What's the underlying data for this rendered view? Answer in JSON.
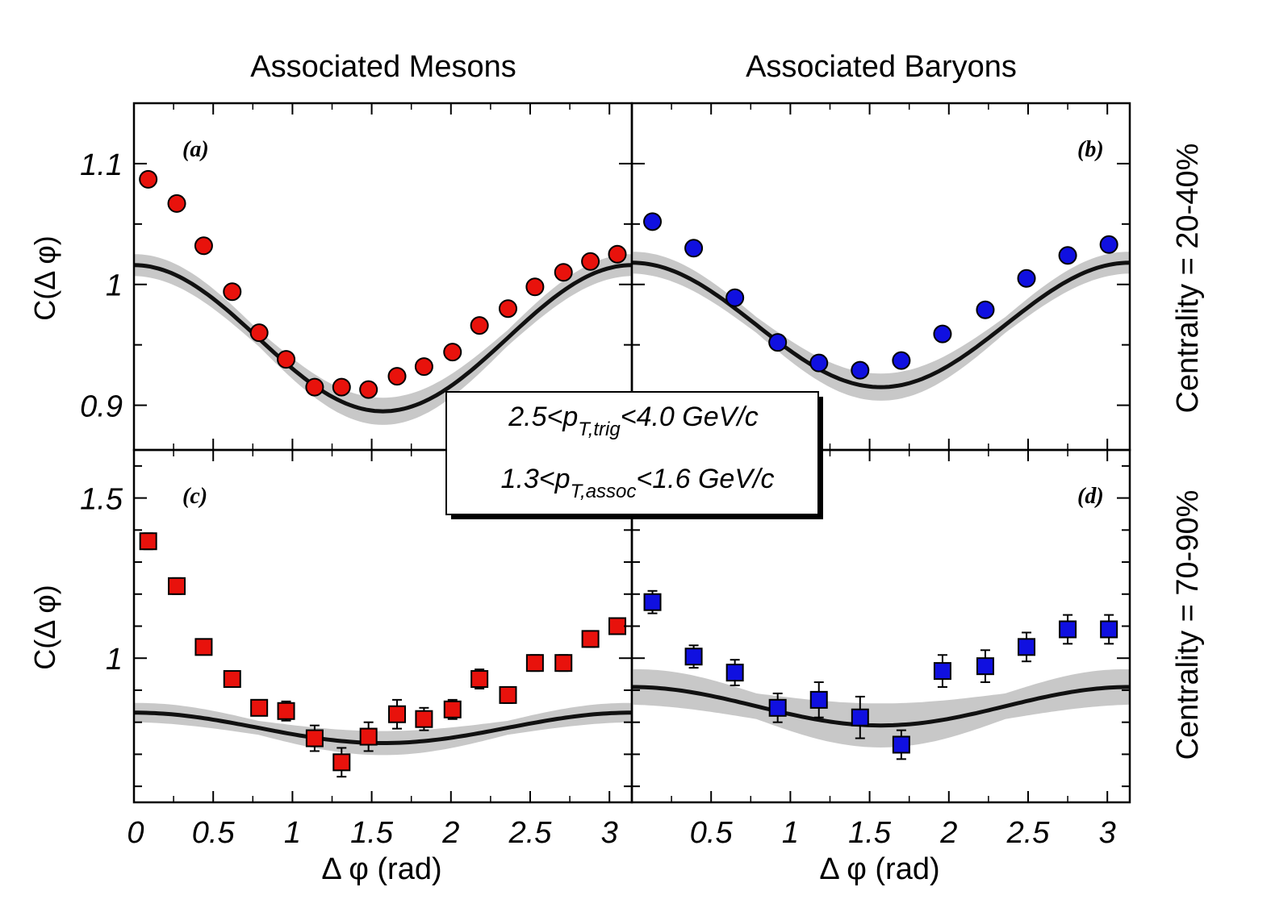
{
  "figure": {
    "col_titles": [
      "Associated Mesons",
      "Associated Baryons"
    ],
    "row_labels": [
      "Centrality = 20-40%",
      "Centrality = 70-90%"
    ],
    "ylabel": "C(Δ φ)",
    "xlabel": "Δ φ (rad)",
    "legend": {
      "line1": {
        "pre": "2.5<p",
        "sub": "T,trig",
        "post": "<4.0 GeV/c"
      },
      "line2": {
        "pre": "1.3<p",
        "sub": "T,assoc",
        "post": "<1.6 GeV/c"
      }
    },
    "colors": {
      "meson": "#e8120c",
      "baryon": "#1010e0",
      "curve": "#111111",
      "band": "#c8c8c8"
    }
  },
  "chart_data": [
    {
      "panel": "(a)",
      "type": "scatter",
      "marker": "circle",
      "x": [
        0.09,
        0.27,
        0.44,
        0.62,
        0.79,
        0.96,
        1.14,
        1.31,
        1.48,
        1.66,
        1.83,
        2.01,
        2.18,
        2.36,
        2.53,
        2.71,
        2.88,
        3.05
      ],
      "y": [
        1.087,
        1.067,
        1.032,
        0.994,
        0.96,
        0.938,
        0.915,
        0.915,
        0.913,
        0.924,
        0.932,
        0.944,
        0.966,
        0.98,
        0.998,
        1.01,
        1.019,
        1.025
      ],
      "fit_y_at_0": 1.016,
      "fit_y_at_pi_over_2": 0.895,
      "band_halfwidth": 0.009,
      "xlim": [
        0,
        3.1416
      ],
      "ylim": [
        0.863,
        1.15
      ],
      "yticks": [
        0.9,
        1,
        1.1
      ],
      "ytick_labels": [
        "0.9",
        "1",
        "1.1"
      ]
    },
    {
      "panel": "(b)",
      "type": "scatter",
      "marker": "circle",
      "x": [
        0.13,
        0.39,
        0.65,
        0.92,
        1.18,
        1.44,
        1.7,
        1.96,
        2.23,
        2.49,
        2.75,
        3.01
      ],
      "y": [
        1.052,
        1.03,
        0.989,
        0.952,
        0.935,
        0.929,
        0.937,
        0.959,
        0.979,
        1.005,
        1.024,
        1.033
      ],
      "fit_y_at_0": 1.018,
      "fit_y_at_pi_over_2": 0.915,
      "band_halfwidth": 0.009,
      "xlim": [
        0,
        3.1416
      ],
      "ylim": [
        0.863,
        1.15
      ]
    },
    {
      "panel": "(c)",
      "type": "scatter",
      "marker": "square",
      "x": [
        0.09,
        0.27,
        0.44,
        0.62,
        0.79,
        0.96,
        1.14,
        1.31,
        1.48,
        1.66,
        1.83,
        2.01,
        2.18,
        2.36,
        2.53,
        2.71,
        2.88,
        3.05
      ],
      "y": [
        1.365,
        1.225,
        1.035,
        0.935,
        0.845,
        0.835,
        0.75,
        0.675,
        0.755,
        0.825,
        0.81,
        0.84,
        0.935,
        0.885,
        0.985,
        0.985,
        1.06,
        1.1
      ],
      "err": [
        0.025,
        0.025,
        0.02,
        0.02,
        0.02,
        0.03,
        0.04,
        0.045,
        0.045,
        0.045,
        0.035,
        0.03,
        0.03,
        0.025,
        0.025,
        0.025,
        0.025,
        0.025
      ],
      "fit_y_at_0": 0.83,
      "fit_y_at_pi_over_2": 0.735,
      "band_halfwidth": 0.03,
      "xlim": [
        0,
        3.1416
      ],
      "ylim": [
        0.55,
        1.65
      ],
      "yticks": [
        1,
        1.5
      ],
      "ytick_labels": [
        "1",
        "1.5"
      ]
    },
    {
      "panel": "(d)",
      "type": "scatter",
      "marker": "square",
      "x": [
        0.13,
        0.39,
        0.65,
        0.92,
        1.18,
        1.44,
        1.7,
        1.96,
        2.23,
        2.49,
        2.75,
        3.01
      ],
      "y": [
        1.175,
        1.005,
        0.955,
        0.845,
        0.87,
        0.815,
        0.73,
        0.96,
        0.975,
        1.035,
        1.09,
        1.09
      ],
      "err": [
        0.035,
        0.035,
        0.04,
        0.045,
        0.055,
        0.065,
        0.045,
        0.05,
        0.05,
        0.045,
        0.045,
        0.045
      ],
      "fit_y_at_0": 0.91,
      "fit_y_at_pi_over_2": 0.79,
      "band_halfwidth": 0.055,
      "xlim": [
        0,
        3.1416
      ],
      "ylim": [
        0.55,
        1.65
      ]
    }
  ],
  "xticks": [
    0,
    0.5,
    1,
    1.5,
    2,
    2.5,
    3
  ],
  "xtick_labels_left": [
    "0",
    "0.5",
    "1",
    "1.5",
    "2",
    "2.5",
    "3"
  ],
  "xtick_labels_right": [
    "0.5",
    "1",
    "1.5",
    "2",
    "2.5",
    "3"
  ]
}
